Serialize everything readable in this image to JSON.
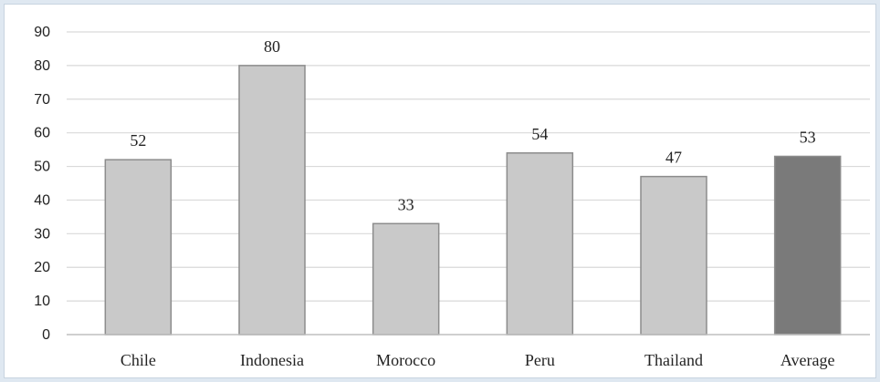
{
  "chart_data": {
    "type": "bar",
    "title": "",
    "xlabel": "",
    "ylabel": "",
    "categories": [
      "Chile",
      "Indonesia",
      "Morocco",
      "Peru",
      "Thailand",
      "Average"
    ],
    "values": [
      52,
      80,
      33,
      54,
      47,
      53
    ],
    "data_labels": [
      "52",
      "80",
      "33",
      "54",
      "47",
      "53"
    ],
    "ylim": [
      0,
      90
    ],
    "yticks": [
      "0",
      "10",
      "20",
      "30",
      "40",
      "50",
      "60",
      "70",
      "80",
      "90"
    ],
    "grid": "horizontal",
    "legend": "none",
    "colors": {
      "bar": "#c9c9c9",
      "bar_highlight": "#7a7a7a",
      "bar_border": "#8c8c8c",
      "grid": "#d9d9d9",
      "axis": "#bfbfbf"
    },
    "highlight_category": "Average"
  }
}
